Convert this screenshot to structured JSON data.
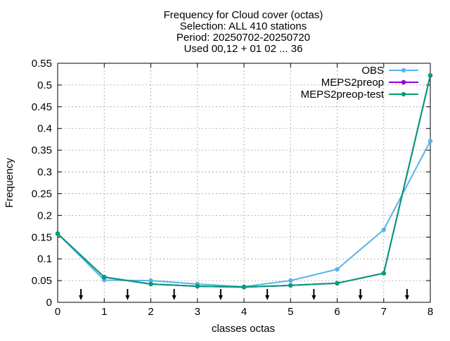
{
  "chart_data": {
    "type": "line",
    "title_lines": [
      "Frequency  for Cloud cover (octas)",
      "Selection: ALL    410 stations",
      "Period: 20250702-20250720",
      "Used 00,12 + 01 02 ... 36"
    ],
    "xlabel": "classes octas",
    "ylabel": "Frequency",
    "xlim": [
      0,
      8
    ],
    "ylim": [
      0,
      0.55
    ],
    "xticks": [
      "0",
      "1",
      "2",
      "3",
      "4",
      "5",
      "6",
      "7",
      "8"
    ],
    "yticks": [
      "0",
      "0.05",
      "0.1",
      "0.15",
      "0.2",
      "0.25",
      "0.3",
      "0.35",
      "0.4",
      "0.45",
      "0.5",
      "0.55"
    ],
    "grid": true,
    "legend_position": "top-right",
    "x": [
      0,
      1,
      2,
      3,
      4,
      5,
      6,
      7,
      8
    ],
    "series": [
      {
        "name": "OBS",
        "color": "#56b4e9",
        "values": [
          0.158,
          0.051,
          0.05,
          0.042,
          0.036,
          0.05,
          0.076,
          0.167,
          0.371
        ]
      },
      {
        "name": "MEPS2preop",
        "color": "#9400d3",
        "values": [
          0.158,
          0.058,
          0.042,
          0.037,
          0.035,
          0.039,
          0.044,
          0.067,
          0.522
        ]
      },
      {
        "name": "MEPS2preop-test",
        "color": "#009e73",
        "values": [
          0.158,
          0.058,
          0.042,
          0.037,
          0.035,
          0.039,
          0.044,
          0.067,
          0.522
        ]
      }
    ],
    "arrows_x": [
      0.5,
      1.5,
      2.5,
      3.5,
      4.5,
      5.5,
      6.5,
      7.5
    ]
  }
}
